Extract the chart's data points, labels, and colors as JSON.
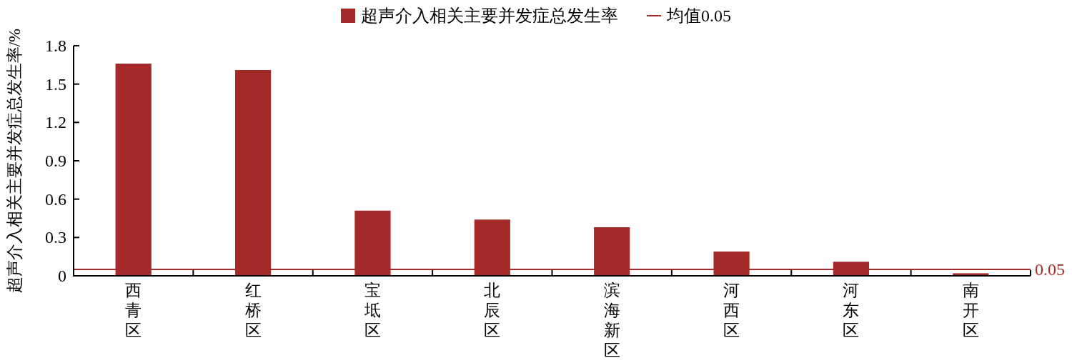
{
  "chart_data": {
    "type": "bar",
    "ylabel": "超声介入相关主要并发症总发生率/%",
    "categories": [
      "西青区",
      "红桥区",
      "宝坻区",
      "北辰区",
      "滨海新区",
      "河西区",
      "河东区",
      "南开区"
    ],
    "series": [
      {
        "name": "超声介入相关主要并发症总发生率",
        "color": "#a32a28",
        "values": [
          1.66,
          1.61,
          0.51,
          0.44,
          0.38,
          0.19,
          0.11,
          0.02
        ]
      }
    ],
    "ref_lines": [
      {
        "axis": "y",
        "value": 0.05,
        "label": "0.05",
        "color": "#a32a28",
        "line_style": "solid"
      }
    ],
    "annotations": [
      "均值0.05"
    ],
    "ylim": [
      0,
      1.8
    ],
    "yticks": [
      0,
      0.3,
      0.6,
      0.9,
      1.2,
      1.5,
      1.8
    ],
    "legend": "top",
    "grid": false
  }
}
